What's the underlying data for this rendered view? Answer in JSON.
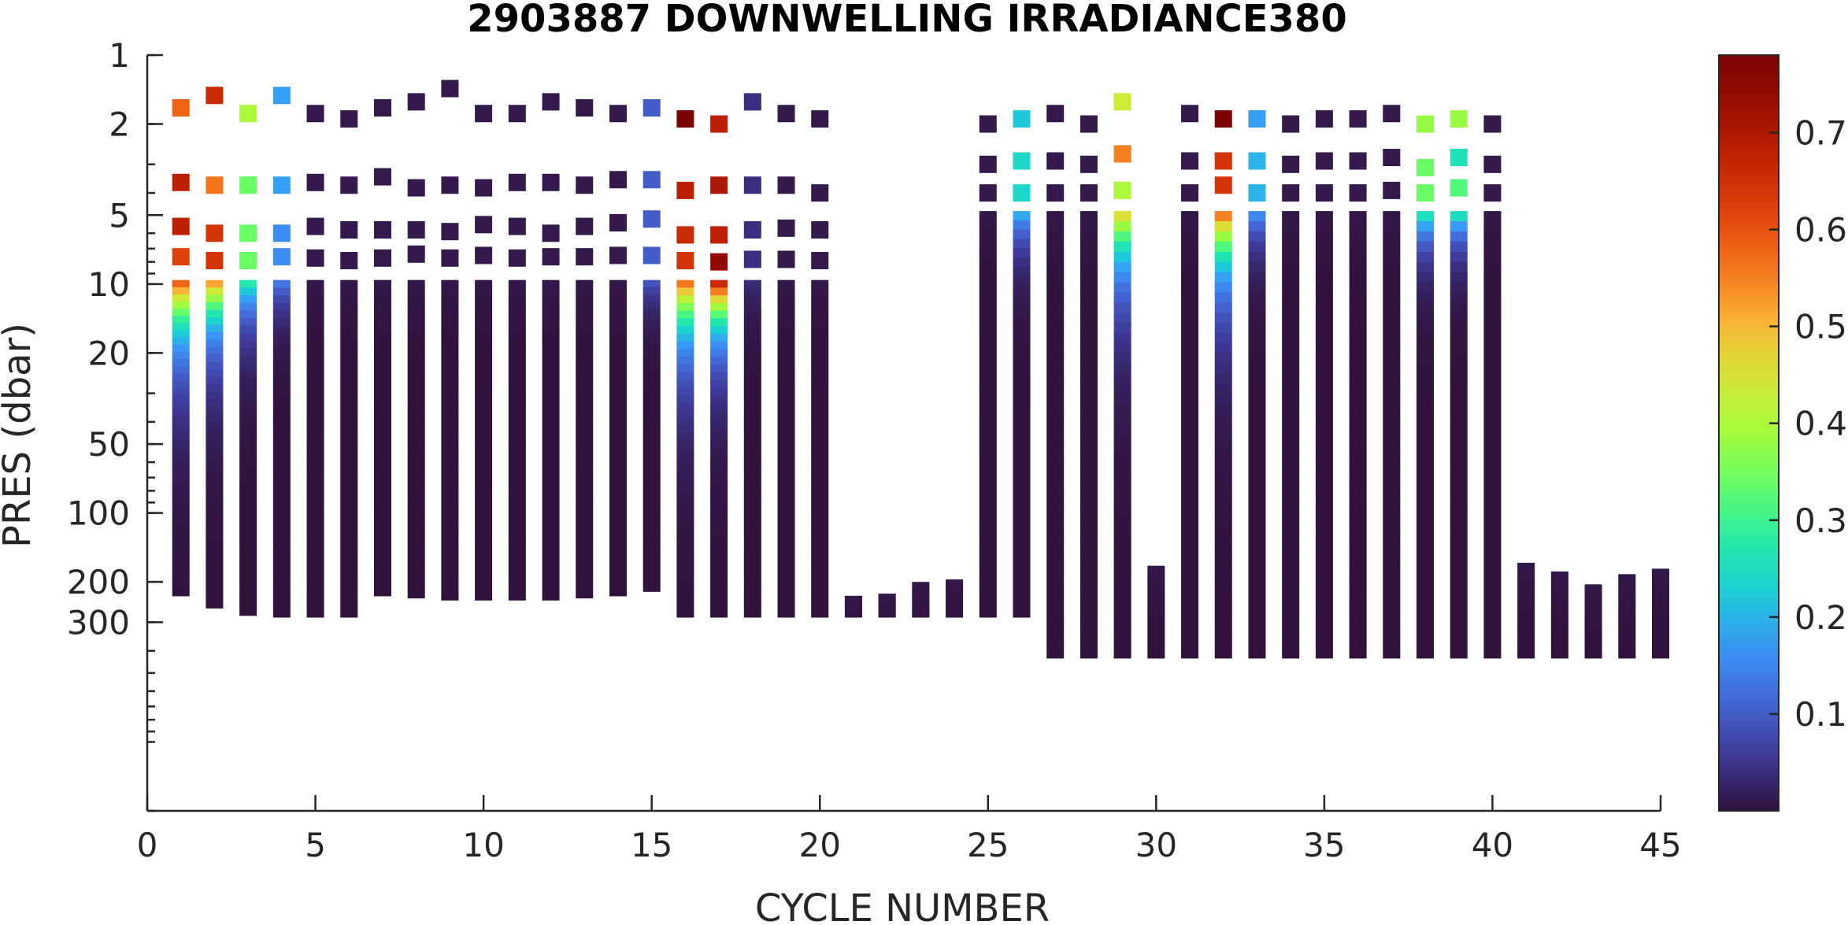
{
  "chart_data": {
    "type": "heatmap",
    "title": "2903887  DOWNWELLING IRRADIANCE380",
    "xlabel": "CYCLE NUMBER",
    "ylabel": "PRES (dbar)",
    "xlim": [
      0,
      45
    ],
    "ylim": [
      1,
      2000
    ],
    "yscale": "log",
    "y_reversed": true,
    "xticks": [
      0,
      5,
      10,
      15,
      20,
      25,
      30,
      35,
      40,
      45
    ],
    "yticks": [
      1,
      2,
      5,
      10,
      20,
      50,
      100,
      200,
      300
    ],
    "colorbar": {
      "ticks": [
        0.1,
        0.2,
        0.3,
        0.4,
        0.5,
        0.6,
        0.7
      ],
      "tick_labels": [
        "0.1",
        "0.2",
        "0.3",
        "0.4",
        "0.5",
        "0.6",
        "0.7"
      ],
      "range": [
        0,
        0.78
      ],
      "colormap": "turbo"
    },
    "profiles": [
      {
        "cycle": 1,
        "top": [
          [
            1.7,
            0.58
          ],
          [
            3.6,
            0.68
          ],
          [
            5.6,
            0.68
          ],
          [
            7.6,
            0.62
          ]
        ],
        "col": [
          9.6,
          230
        ],
        "surf": 0.62,
        "ef": 0.85
      },
      {
        "cycle": 2,
        "top": [
          [
            1.5,
            0.66
          ],
          [
            3.7,
            0.56
          ],
          [
            6.0,
            0.64
          ],
          [
            7.9,
            0.64
          ]
        ],
        "col": [
          9.6,
          260
        ],
        "surf": 0.56,
        "ef": 0.75
      },
      {
        "cycle": 3,
        "top": [
          [
            1.8,
            0.4
          ],
          [
            3.7,
            0.34
          ],
          [
            6.0,
            0.34
          ],
          [
            7.9,
            0.34
          ]
        ],
        "col": [
          9.6,
          280
        ],
        "surf": 0.3,
        "ef": 0.6
      },
      {
        "cycle": 4,
        "top": [
          [
            1.5,
            0.18
          ],
          [
            3.7,
            0.18
          ],
          [
            6.0,
            0.16
          ],
          [
            7.6,
            0.16
          ]
        ],
        "col": [
          9.6,
          285
        ],
        "surf": 0.15,
        "ef": 0.45
      },
      {
        "cycle": 5,
        "top": [
          [
            1.8,
            0.01
          ],
          [
            3.6,
            0.01
          ],
          [
            5.6,
            0.01
          ],
          [
            7.7,
            0.01
          ]
        ],
        "col": [
          9.6,
          285
        ],
        "surf": 0.01,
        "ef": 0.5
      },
      {
        "cycle": 6,
        "top": [
          [
            1.9,
            0.01
          ],
          [
            3.7,
            0.01
          ],
          [
            5.8,
            0.01
          ],
          [
            7.9,
            0.01
          ]
        ],
        "col": [
          9.6,
          285
        ],
        "surf": 0.01,
        "ef": 0.5
      },
      {
        "cycle": 7,
        "top": [
          [
            1.7,
            0.01
          ],
          [
            3.4,
            0.01
          ],
          [
            5.8,
            0.01
          ],
          [
            7.7,
            0.01
          ]
        ],
        "col": [
          9.6,
          230
        ],
        "surf": 0.01,
        "ef": 0.5
      },
      {
        "cycle": 8,
        "top": [
          [
            1.6,
            0.01
          ],
          [
            3.8,
            0.01
          ],
          [
            5.8,
            0.01
          ],
          [
            7.4,
            0.01
          ]
        ],
        "col": [
          9.6,
          235
        ],
        "surf": 0.01,
        "ef": 0.5
      },
      {
        "cycle": 9,
        "top": [
          [
            1.4,
            0.01
          ],
          [
            3.7,
            0.01
          ],
          [
            5.9,
            0.01
          ],
          [
            7.7,
            0.01
          ]
        ],
        "col": [
          9.6,
          240
        ],
        "surf": 0.01,
        "ef": 0.5
      },
      {
        "cycle": 10,
        "top": [
          [
            1.8,
            0.01
          ],
          [
            3.8,
            0.01
          ],
          [
            5.5,
            0.01
          ],
          [
            7.5,
            0.01
          ]
        ],
        "col": [
          9.6,
          240
        ],
        "surf": 0.01,
        "ef": 0.5
      },
      {
        "cycle": 11,
        "top": [
          [
            1.8,
            0.01
          ],
          [
            3.6,
            0.01
          ],
          [
            5.6,
            0.01
          ],
          [
            7.7,
            0.01
          ]
        ],
        "col": [
          9.6,
          240
        ],
        "surf": 0.01,
        "ef": 0.5
      },
      {
        "cycle": 12,
        "top": [
          [
            1.6,
            0.01
          ],
          [
            3.6,
            0.01
          ],
          [
            6.0,
            0.01
          ],
          [
            7.6,
            0.01
          ]
        ],
        "col": [
          9.6,
          240
        ],
        "surf": 0.01,
        "ef": 0.5
      },
      {
        "cycle": 13,
        "top": [
          [
            1.7,
            0.01
          ],
          [
            3.7,
            0.01
          ],
          [
            5.6,
            0.01
          ],
          [
            7.6,
            0.01
          ]
        ],
        "col": [
          9.6,
          235
        ],
        "surf": 0.01,
        "ef": 0.5
      },
      {
        "cycle": 14,
        "top": [
          [
            1.8,
            0.01
          ],
          [
            3.5,
            0.01
          ],
          [
            5.4,
            0.01
          ],
          [
            7.5,
            0.01
          ]
        ],
        "col": [
          9.6,
          230
        ],
        "surf": 0.01,
        "ef": 0.5
      },
      {
        "cycle": 15,
        "top": [
          [
            1.7,
            0.1
          ],
          [
            3.5,
            0.1
          ],
          [
            5.2,
            0.1
          ],
          [
            7.5,
            0.1
          ]
        ],
        "col": [
          9.6,
          220
        ],
        "surf": 0.1,
        "ef": 0.4
      },
      {
        "cycle": 16,
        "top": [
          [
            1.9,
            0.78
          ],
          [
            3.9,
            0.68
          ],
          [
            6.1,
            0.66
          ],
          [
            7.9,
            0.64
          ]
        ],
        "col": [
          9.6,
          285
        ],
        "surf": 0.6,
        "ef": 0.85
      },
      {
        "cycle": 17,
        "top": [
          [
            2.0,
            0.68
          ],
          [
            3.7,
            0.7
          ],
          [
            6.1,
            0.68
          ],
          [
            8.0,
            0.74
          ]
        ],
        "col": [
          9.6,
          285
        ],
        "surf": 0.72,
        "ef": 0.7
      },
      {
        "cycle": 18,
        "top": [
          [
            1.6,
            0.04
          ],
          [
            3.7,
            0.04
          ],
          [
            5.8,
            0.04
          ],
          [
            7.8,
            0.04
          ]
        ],
        "col": [
          9.6,
          285
        ],
        "surf": 0.04,
        "ef": 0.5
      },
      {
        "cycle": 19,
        "top": [
          [
            1.8,
            0.01
          ],
          [
            3.7,
            0.01
          ],
          [
            5.7,
            0.01
          ],
          [
            7.8,
            0.01
          ]
        ],
        "col": [
          9.6,
          285
        ],
        "surf": 0.01,
        "ef": 0.5
      },
      {
        "cycle": 20,
        "top": [
          [
            1.9,
            0.01
          ],
          [
            4.0,
            0.01
          ],
          [
            5.8,
            0.01
          ],
          [
            7.9,
            0.01
          ]
        ],
        "col": [
          9.6,
          285
        ],
        "surf": 0.01,
        "ef": 0.5
      },
      {
        "cycle": 21,
        "top": [],
        "col": [
          230,
          285
        ],
        "surf": 0.01,
        "ef": 0.5
      },
      {
        "cycle": 22,
        "top": [],
        "col": [
          225,
          285
        ],
        "surf": 0.01,
        "ef": 0.5
      },
      {
        "cycle": 23,
        "top": [],
        "col": [
          200,
          285
        ],
        "surf": 0.01,
        "ef": 0.5
      },
      {
        "cycle": 24,
        "top": [],
        "col": [
          195,
          285
        ],
        "surf": 0.01,
        "ef": 0.5
      },
      {
        "cycle": 25,
        "top": [
          [
            2.0,
            0.01
          ],
          [
            3.0,
            0.01
          ],
          [
            4.0,
            0.01
          ]
        ],
        "col": [
          4.8,
          285
        ],
        "surf": 0.01,
        "ef": 0.5
      },
      {
        "cycle": 26,
        "top": [
          [
            1.9,
            0.22
          ],
          [
            2.9,
            0.24
          ],
          [
            4.0,
            0.24
          ]
        ],
        "col": [
          4.8,
          285
        ],
        "surf": 0.22,
        "ef": 0.5
      },
      {
        "cycle": 27,
        "top": [
          [
            1.8,
            0.01
          ],
          [
            2.9,
            0.01
          ],
          [
            4.0,
            0.01
          ]
        ],
        "col": [
          4.8,
          430
        ],
        "surf": 0.01,
        "ef": 0.5
      },
      {
        "cycle": 28,
        "top": [
          [
            2.0,
            0.01
          ],
          [
            3.0,
            0.01
          ],
          [
            4.0,
            0.01
          ]
        ],
        "col": [
          4.8,
          430
        ],
        "surf": 0.01,
        "ef": 0.5
      },
      {
        "cycle": 29,
        "top": [
          [
            1.6,
            0.44
          ],
          [
            2.7,
            0.55
          ],
          [
            3.9,
            0.4
          ]
        ],
        "col": [
          4.8,
          430
        ],
        "surf": 0.5,
        "ef": 0.9
      },
      {
        "cycle": 30,
        "top": [],
        "col": [
          170,
          430
        ],
        "surf": 0.01,
        "ef": 0.5
      },
      {
        "cycle": 31,
        "top": [
          [
            1.8,
            0.01
          ],
          [
            2.9,
            0.01
          ],
          [
            4.0,
            0.01
          ]
        ],
        "col": [
          4.8,
          430
        ],
        "surf": 0.01,
        "ef": 0.5
      },
      {
        "cycle": 32,
        "top": [
          [
            1.9,
            0.78
          ],
          [
            2.9,
            0.64
          ],
          [
            3.7,
            0.64
          ]
        ],
        "col": [
          4.8,
          430
        ],
        "surf": 0.6,
        "ef": 0.9
      },
      {
        "cycle": 33,
        "top": [
          [
            1.9,
            0.18
          ],
          [
            2.9,
            0.2
          ],
          [
            4.0,
            0.2
          ]
        ],
        "col": [
          4.8,
          430
        ],
        "surf": 0.18,
        "ef": 0.5
      },
      {
        "cycle": 34,
        "top": [
          [
            2.0,
            0.01
          ],
          [
            3.0,
            0.01
          ],
          [
            4.0,
            0.01
          ]
        ],
        "col": [
          4.8,
          430
        ],
        "surf": 0.01,
        "ef": 0.5
      },
      {
        "cycle": 35,
        "top": [
          [
            1.9,
            0.01
          ],
          [
            2.9,
            0.01
          ],
          [
            4.0,
            0.01
          ]
        ],
        "col": [
          4.8,
          430
        ],
        "surf": 0.01,
        "ef": 0.5
      },
      {
        "cycle": 36,
        "top": [
          [
            1.9,
            0.01
          ],
          [
            2.9,
            0.01
          ],
          [
            4.0,
            0.01
          ]
        ],
        "col": [
          4.8,
          430
        ],
        "surf": 0.01,
        "ef": 0.5
      },
      {
        "cycle": 37,
        "top": [
          [
            1.8,
            0.01
          ],
          [
            2.8,
            0.01
          ],
          [
            3.9,
            0.01
          ]
        ],
        "col": [
          4.8,
          430
        ],
        "surf": 0.01,
        "ef": 0.5
      },
      {
        "cycle": 38,
        "top": [
          [
            2.0,
            0.38
          ],
          [
            3.1,
            0.34
          ],
          [
            4.0,
            0.34
          ]
        ],
        "col": [
          4.8,
          430
        ],
        "surf": 0.3,
        "ef": 0.5
      },
      {
        "cycle": 39,
        "top": [
          [
            1.9,
            0.38
          ],
          [
            2.8,
            0.26
          ],
          [
            3.8,
            0.32
          ]
        ],
        "col": [
          4.8,
          430
        ],
        "surf": 0.3,
        "ef": 0.45
      },
      {
        "cycle": 40,
        "top": [
          [
            2.0,
            0.01
          ],
          [
            3.0,
            0.01
          ],
          [
            4.0,
            0.01
          ]
        ],
        "col": [
          4.8,
          430
        ],
        "surf": 0.01,
        "ef": 0.5
      },
      {
        "cycle": 41,
        "top": [],
        "col": [
          165,
          430
        ],
        "surf": 0.01,
        "ef": 0.5
      },
      {
        "cycle": 42,
        "top": [],
        "col": [
          180,
          430
        ],
        "surf": 0.01,
        "ef": 0.5
      },
      {
        "cycle": 43,
        "top": [],
        "col": [
          205,
          430
        ],
        "surf": 0.01,
        "ef": 0.5
      },
      {
        "cycle": 44,
        "top": [],
        "col": [
          185,
          430
        ],
        "surf": 0.01,
        "ef": 0.5
      },
      {
        "cycle": 45,
        "top": [],
        "col": [
          175,
          430
        ],
        "surf": 0.01,
        "ef": 0.5
      }
    ]
  }
}
